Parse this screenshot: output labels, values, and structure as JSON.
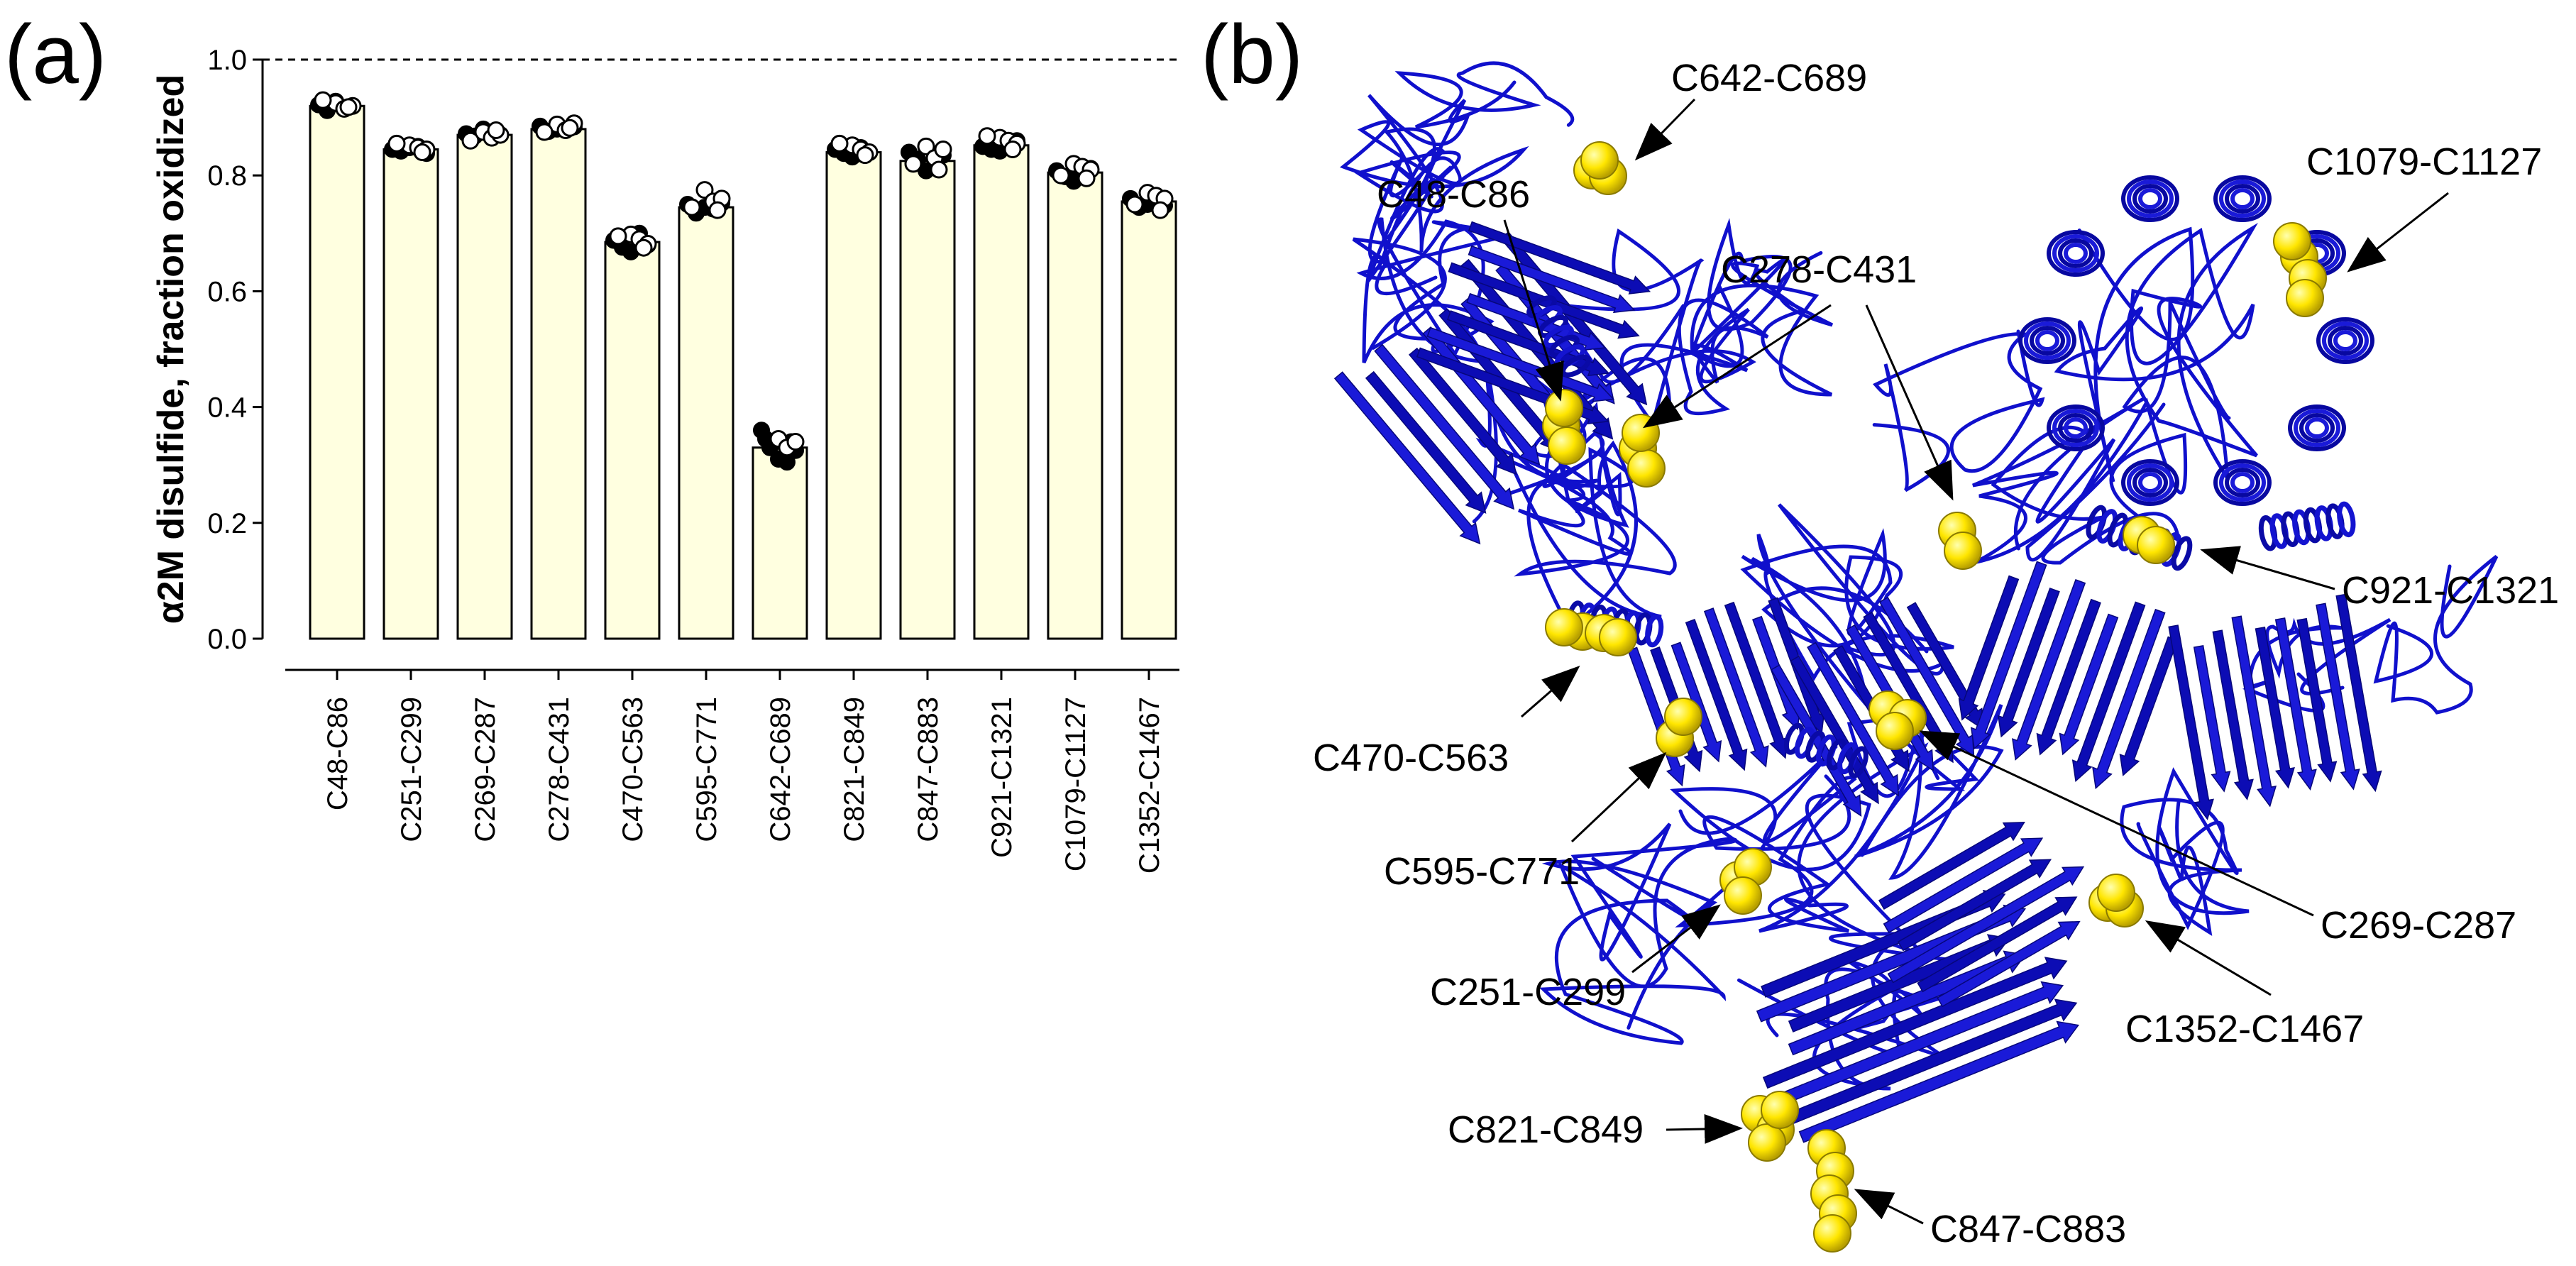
{
  "panels": {
    "a": "(a)",
    "b": "(b)"
  },
  "chart_data": {
    "type": "bar",
    "title": "",
    "xlabel": "",
    "ylabel": "α2M disulfide, fraction oxidized",
    "ylim": [
      0,
      1.0
    ],
    "yticks": [
      "0.0",
      "0.2",
      "0.4",
      "0.6",
      "0.8",
      "1.0"
    ],
    "reference_line": 1.0,
    "categories": [
      "C48-C86",
      "C251-C299",
      "C269-C287",
      "C278-C431",
      "C470-C563",
      "C595-C771",
      "C642-C689",
      "C821-C849",
      "C847-C883",
      "C921-C1321",
      "C1079-C1127",
      "C1352-C1467"
    ],
    "values": [
      0.92,
      0.845,
      0.87,
      0.88,
      0.685,
      0.745,
      0.33,
      0.84,
      0.825,
      0.852,
      0.805,
      0.755
    ],
    "points": [
      {
        "open": [
          0.925,
          0.915,
          0.92,
          0.93,
          0.918
        ],
        "filled": [
          0.922,
          0.912,
          0.928,
          0.917,
          0.92
        ]
      },
      {
        "open": [
          0.852,
          0.848,
          0.845,
          0.855,
          0.84
        ],
        "filled": [
          0.845,
          0.842,
          0.848,
          0.85,
          0.838
        ]
      },
      {
        "open": [
          0.875,
          0.865,
          0.87,
          0.86,
          0.878
        ],
        "filled": [
          0.872,
          0.868,
          0.88,
          0.866,
          0.87
        ]
      },
      {
        "open": [
          0.888,
          0.878,
          0.89,
          0.875,
          0.882
        ],
        "filled": [
          0.885,
          0.876,
          0.88,
          0.878,
          0.884
        ]
      },
      {
        "open": [
          0.698,
          0.69,
          0.682,
          0.695,
          0.675
        ],
        "filled": [
          0.688,
          0.676,
          0.668,
          0.7,
          0.68
        ]
      },
      {
        "open": [
          0.775,
          0.755,
          0.76,
          0.745,
          0.74
        ],
        "filled": [
          0.75,
          0.735,
          0.745,
          0.742,
          0.752
        ]
      },
      {
        "open": [
          0.345,
          0.33,
          0.34
        ],
        "filled": [
          0.36,
          0.33,
          0.31,
          0.305,
          0.325,
          0.345,
          0.34
        ]
      },
      {
        "open": [
          0.852,
          0.845,
          0.84,
          0.855,
          0.835
        ],
        "filled": [
          0.845,
          0.838,
          0.832,
          0.848,
          0.84
        ]
      },
      {
        "open": [
          0.85,
          0.83,
          0.845,
          0.82,
          0.81
        ],
        "filled": [
          0.84,
          0.828,
          0.808,
          0.815,
          0.835
        ]
      },
      {
        "open": [
          0.865,
          0.86,
          0.855,
          0.868,
          0.845
        ],
        "filled": [
          0.85,
          0.845,
          0.842,
          0.855,
          0.86
        ]
      },
      {
        "open": [
          0.82,
          0.815,
          0.81,
          0.8,
          0.795
        ],
        "filled": [
          0.808,
          0.798,
          0.79,
          0.805,
          0.812
        ]
      },
      {
        "open": [
          0.77,
          0.765,
          0.76,
          0.75,
          0.74
        ],
        "filled": [
          0.76,
          0.745,
          0.75,
          0.755,
          0.748
        ]
      }
    ]
  },
  "structure_labels": [
    "C642-C689",
    "C48-C86",
    "C278-C431",
    "C1079-C1127",
    "C921-C1321",
    "C470-C563",
    "C595-C771",
    "C251-C299",
    "C269-C287",
    "C1352-C1467",
    "C821-C849",
    "C847-C883"
  ],
  "colors": {
    "bar_fill": "#ffffe0",
    "bar_stroke": "#000000",
    "ribbon": "#1010cc",
    "sphere": "#ffe600"
  }
}
